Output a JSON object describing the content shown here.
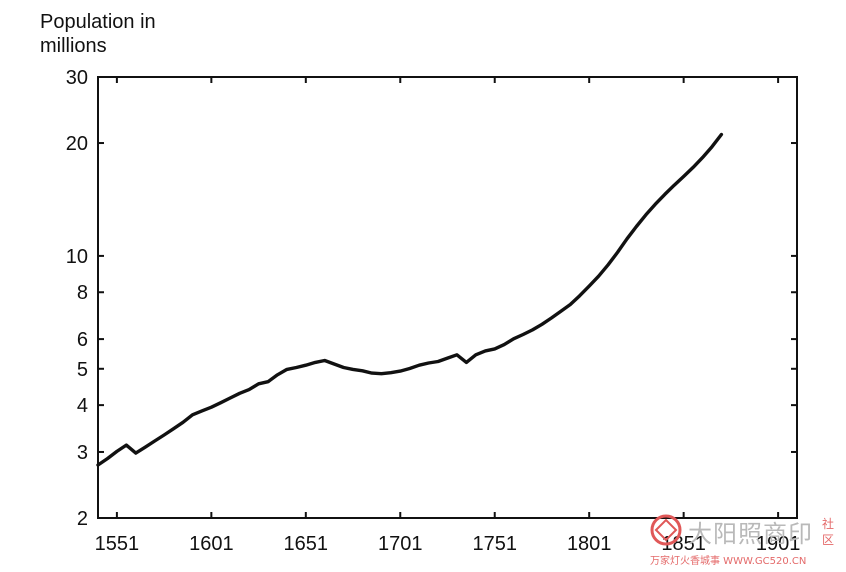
{
  "chart_data": {
    "type": "line",
    "ylabel": "Population in\nmillions",
    "xlabel": "",
    "title": "",
    "yscale": "log",
    "xlim": [
      1541,
      1911
    ],
    "ylim": [
      2,
      30
    ],
    "xticks": [
      1551,
      1601,
      1651,
      1701,
      1751,
      1801,
      1851,
      1901
    ],
    "xtick_labels": [
      "1551",
      "1601",
      "1651",
      "1701",
      "1751",
      "1801",
      "1851",
      "1901"
    ],
    "yticks": [
      2,
      3,
      4,
      5,
      6,
      8,
      10,
      20,
      30
    ],
    "ytick_labels": [
      "2",
      "3",
      "4",
      "5",
      "6",
      "8",
      "10",
      "20",
      "30"
    ],
    "grid": false,
    "series": [
      {
        "x": [
          1541,
          1546,
          1551,
          1556,
          1561,
          1566,
          1571,
          1576,
          1581,
          1586,
          1591,
          1596,
          1601,
          1606,
          1611,
          1616,
          1621,
          1626,
          1631,
          1636,
          1641,
          1646,
          1651,
          1656,
          1661,
          1666,
          1671,
          1676,
          1681,
          1686,
          1691,
          1696,
          1701,
          1706,
          1711,
          1716,
          1721,
          1726,
          1731,
          1736,
          1741,
          1746,
          1751,
          1756,
          1761,
          1766,
          1771,
          1776,
          1781,
          1786,
          1791,
          1796,
          1801,
          1806,
          1811,
          1816,
          1821,
          1826,
          1831,
          1836,
          1841,
          1846,
          1851,
          1856,
          1861,
          1866,
          1871
        ],
        "values": [
          2.77,
          2.88,
          3.01,
          3.13,
          2.98,
          3.09,
          3.21,
          3.33,
          3.46,
          3.6,
          3.77,
          3.86,
          3.95,
          4.06,
          4.18,
          4.3,
          4.4,
          4.56,
          4.62,
          4.82,
          4.98,
          5.04,
          5.11,
          5.2,
          5.26,
          5.15,
          5.04,
          4.98,
          4.94,
          4.87,
          4.85,
          4.88,
          4.93,
          5.01,
          5.11,
          5.18,
          5.23,
          5.34,
          5.45,
          5.2,
          5.45,
          5.58,
          5.65,
          5.8,
          6.01,
          6.17,
          6.35,
          6.57,
          6.83,
          7.12,
          7.42,
          7.83,
          8.31,
          8.83,
          9.47,
          10.22,
          11.11,
          11.98,
          12.87,
          13.74,
          14.59,
          15.44,
          16.28,
          17.22,
          18.29,
          19.55,
          21.08
        ]
      }
    ]
  },
  "watermark": {
    "text": "大阳照商印",
    "sub": "万家灯火香城事 WWW.GC520.CN",
    "side": "社区"
  }
}
